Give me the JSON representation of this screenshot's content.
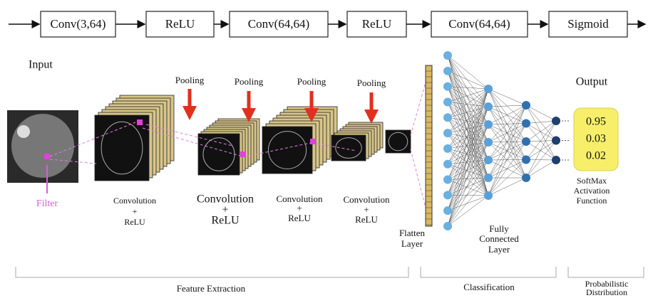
{
  "pipeline": {
    "blocks": [
      "Conv(3,64)",
      "ReLU",
      "Conv(64,64)",
      "ReLU",
      "Conv(64,64)",
      "Sigmoid"
    ]
  },
  "labels": {
    "input": "Input",
    "filter": "Filter",
    "output": "Output"
  },
  "pooling": [
    "Pooling",
    "Pooling",
    "Pooling",
    "Pooling"
  ],
  "conv_stages": [
    [
      "Convolution",
      "+",
      "ReLU"
    ],
    [
      "Convolution",
      "+",
      "ReLU"
    ],
    [
      "Convolution",
      "+",
      "ReLU"
    ],
    [
      "Convolution",
      "+",
      "ReLU"
    ]
  ],
  "flatten": [
    "Flatten",
    "Layer"
  ],
  "fully_connected": [
    "Fully",
    "Connected",
    "Layer"
  ],
  "output_probabilities": [
    0.95,
    0.03,
    0.02
  ],
  "softmax": [
    "SoftMax",
    "Activation",
    "Function"
  ],
  "sections": {
    "feature_extraction": "Feature Extraction",
    "classification": "Classification",
    "probabilistic": [
      "Probabilistic",
      "Distribution"
    ]
  }
}
